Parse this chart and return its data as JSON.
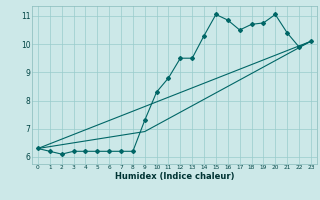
{
  "title": "",
  "xlabel": "Humidex (Indice chaleur)",
  "ylabel": "",
  "bg_color": "#cce8e8",
  "line_color": "#006666",
  "grid_color": "#99cccc",
  "xlim": [
    -0.5,
    23.5
  ],
  "ylim": [
    5.75,
    11.35
  ],
  "xticks": [
    0,
    1,
    2,
    3,
    4,
    5,
    6,
    7,
    8,
    9,
    10,
    11,
    12,
    13,
    14,
    15,
    16,
    17,
    18,
    19,
    20,
    21,
    22,
    23
  ],
  "yticks": [
    6,
    7,
    8,
    9,
    10,
    11
  ],
  "main_line_x": [
    0,
    1,
    2,
    3,
    4,
    5,
    6,
    7,
    8,
    9,
    10,
    11,
    12,
    13,
    14,
    15,
    16,
    17,
    18,
    19,
    20,
    21,
    22,
    23
  ],
  "main_line_y": [
    6.3,
    6.2,
    6.1,
    6.2,
    6.2,
    6.2,
    6.2,
    6.2,
    6.2,
    7.3,
    8.3,
    8.8,
    9.5,
    9.5,
    10.3,
    11.05,
    10.85,
    10.5,
    10.7,
    10.75,
    11.05,
    10.4,
    9.9,
    10.1
  ],
  "line2_x": [
    0,
    23
  ],
  "line2_y": [
    6.3,
    10.1
  ],
  "line3_x": [
    0,
    9,
    23
  ],
  "line3_y": [
    6.3,
    6.9,
    10.1
  ]
}
